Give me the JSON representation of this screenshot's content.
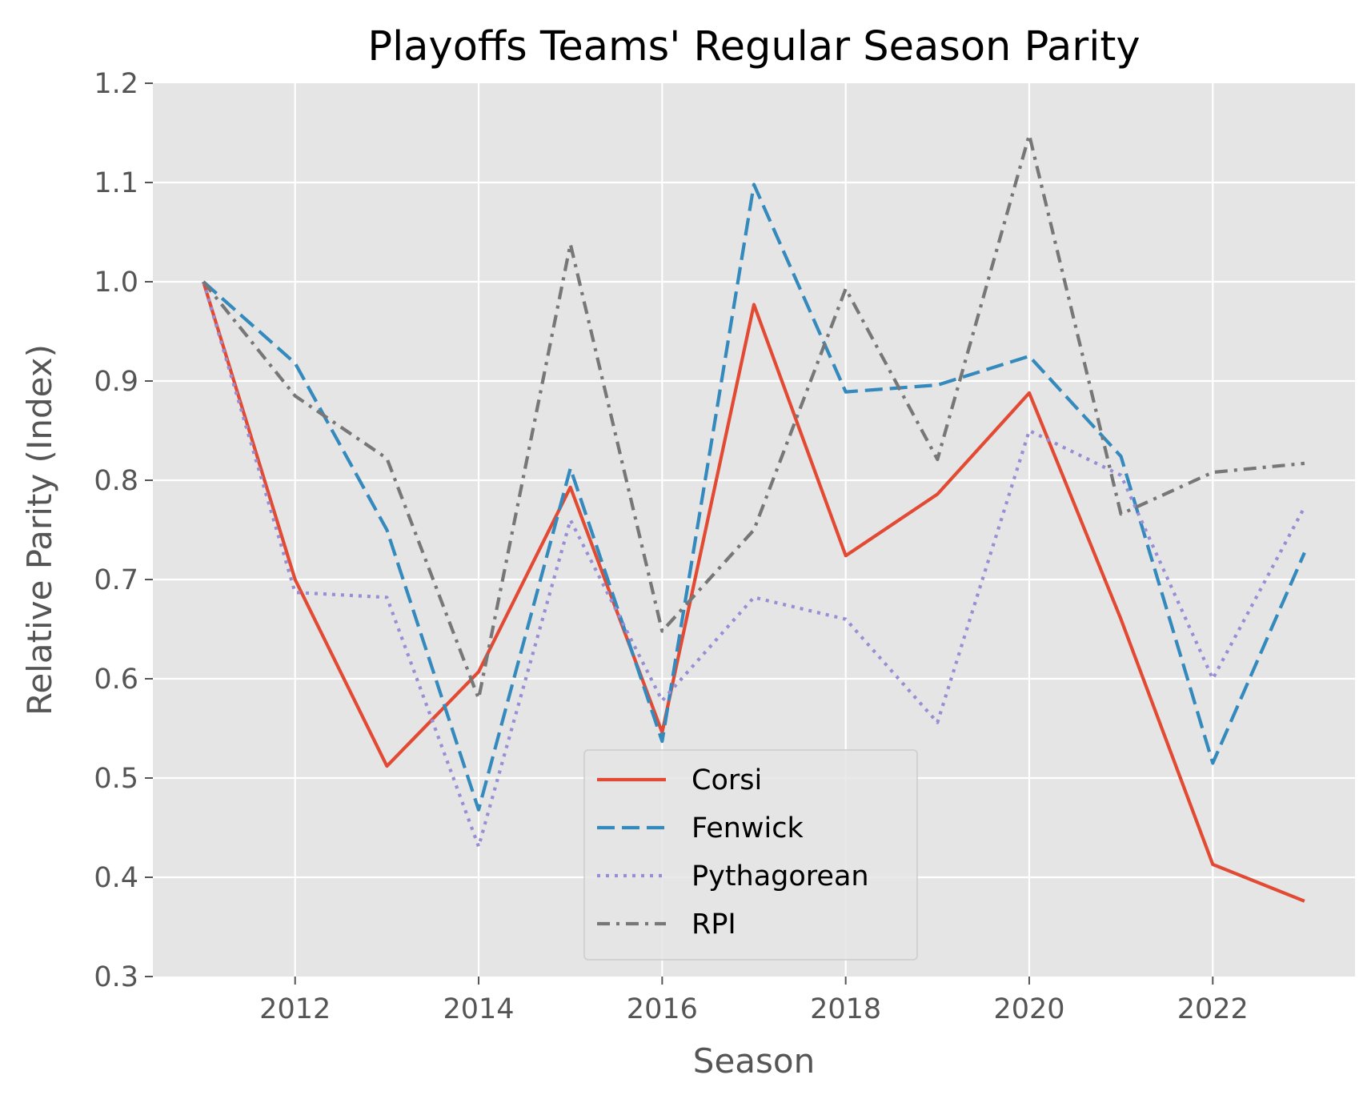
{
  "chart_data": {
    "type": "line",
    "title": "Playoffs Teams' Regular Season Parity",
    "xlabel": "Season",
    "ylabel": "Relative Parity (Index)",
    "x": [
      2011,
      2012,
      2013,
      2014,
      2015,
      2016,
      2017,
      2018,
      2019,
      2020,
      2021,
      2022,
      2023
    ],
    "xlim": [
      2010.45,
      2023.55
    ],
    "ylim": [
      0.3,
      1.2
    ],
    "xticks": [
      2012,
      2014,
      2016,
      2018,
      2020,
      2022
    ],
    "yticks": [
      0.3,
      0.4,
      0.5,
      0.6,
      0.7,
      0.8,
      0.9,
      1.0,
      1.1,
      1.2
    ],
    "xtick_labels": [
      "2012",
      "2014",
      "2016",
      "2018",
      "2020",
      "2022"
    ],
    "ytick_labels": [
      "0.3",
      "0.4",
      "0.5",
      "0.6",
      "0.7",
      "0.8",
      "0.9",
      "1.0",
      "1.1",
      "1.2"
    ],
    "grid": true,
    "style": "ggplot",
    "legend_position": "lower center",
    "series": [
      {
        "name": "Corsi",
        "color": "#E24A33",
        "dash": "solid",
        "values": [
          1.0,
          0.7,
          0.512,
          0.607,
          0.793,
          0.546,
          0.977,
          0.724,
          0.786,
          0.888,
          0.66,
          0.413,
          0.376
        ]
      },
      {
        "name": "Fenwick",
        "color": "#348ABD",
        "dash": "dashed",
        "values": [
          1.0,
          0.918,
          0.75,
          0.468,
          0.812,
          0.537,
          1.098,
          0.889,
          0.896,
          0.925,
          0.824,
          0.515,
          0.727
        ]
      },
      {
        "name": "Pythagorean",
        "color": "#988ED5",
        "dash": "dotted",
        "values": [
          1.0,
          0.687,
          0.682,
          0.431,
          0.76,
          0.578,
          0.682,
          0.66,
          0.556,
          0.85,
          0.805,
          0.6,
          0.773
        ]
      },
      {
        "name": "RPI",
        "color": "#777777",
        "dash": "dashdot",
        "values": [
          1.0,
          0.885,
          0.822,
          0.58,
          1.038,
          0.648,
          0.75,
          0.993,
          0.821,
          1.148,
          0.766,
          0.808,
          0.817
        ]
      }
    ]
  }
}
